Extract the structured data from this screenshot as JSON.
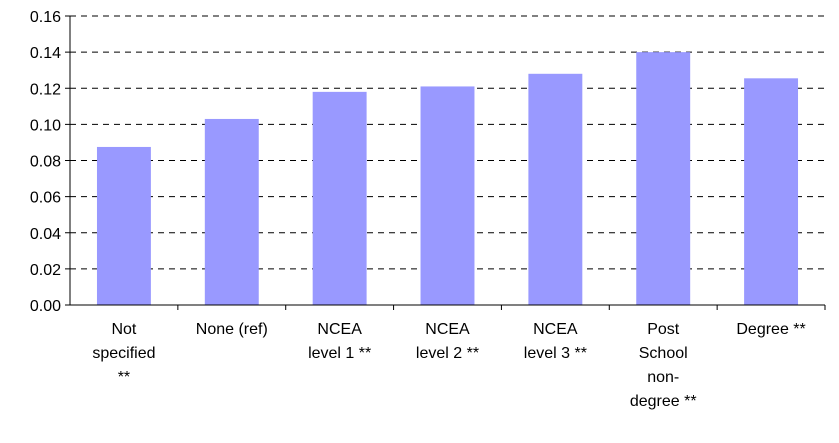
{
  "chart_data": {
    "type": "bar",
    "title": "",
    "xlabel": "",
    "ylabel": "",
    "categories": [
      [
        "Not",
        "specified",
        "**"
      ],
      [
        "None (ref)"
      ],
      [
        "NCEA",
        "level 1 **"
      ],
      [
        "NCEA",
        "level 2 **"
      ],
      [
        "NCEA",
        "level 3 **"
      ],
      [
        "Post",
        "School",
        "non-",
        "degree **"
      ],
      [
        "Degree **"
      ]
    ],
    "values": [
      0.0875,
      0.103,
      0.118,
      0.121,
      0.128,
      0.14,
      0.1255
    ],
    "ylim": [
      0,
      0.16
    ],
    "yticks": [
      0.0,
      0.02,
      0.04,
      0.06,
      0.08,
      0.1,
      0.12,
      0.14,
      0.16
    ],
    "ytick_labels": [
      "0.00",
      "0.02",
      "0.04",
      "0.06",
      "0.08",
      "0.10",
      "0.12",
      "0.14",
      "0.16"
    ],
    "grid": true,
    "legend": "none",
    "bar_color": "#9999ff"
  }
}
